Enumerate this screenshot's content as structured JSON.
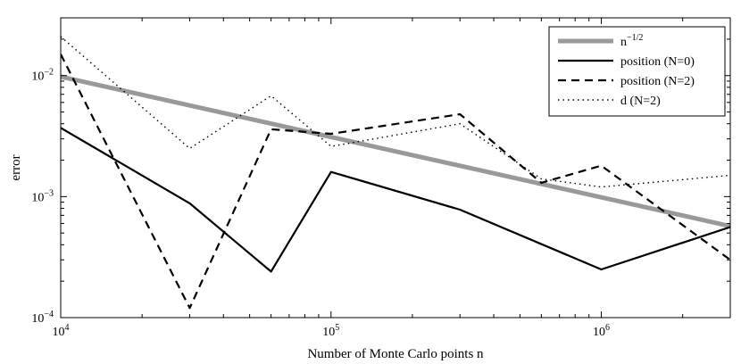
{
  "chart_data": {
    "type": "line",
    "xlabel": "Number of Monte Carlo points n",
    "ylabel": "error",
    "xscale": "log",
    "yscale": "log",
    "xlim": [
      10000,
      3000000
    ],
    "ylim": [
      0.0001,
      0.03
    ],
    "xticks": [
      {
        "value": 10000,
        "base": "10",
        "exp": "4"
      },
      {
        "value": 100000,
        "base": "10",
        "exp": "5"
      },
      {
        "value": 1000000,
        "base": "10",
        "exp": "6"
      }
    ],
    "yticks": [
      {
        "value": 0.0001,
        "base": "10",
        "exp": "−4"
      },
      {
        "value": 0.001,
        "base": "10",
        "exp": "−3"
      },
      {
        "value": 0.01,
        "base": "10",
        "exp": "−2"
      }
    ],
    "grid": false,
    "legend_position": "top-right",
    "series": [
      {
        "name_base": "n",
        "name_sup": "−1/2",
        "style": "solid-thick",
        "color": "#999999",
        "x": [
          10000,
          3000000
        ],
        "y": [
          0.0098,
          0.00057
        ]
      },
      {
        "name": "position (N=0)",
        "style": "solid",
        "color": "#000000",
        "x": [
          10000,
          30000,
          60000,
          100000,
          300000,
          1000000,
          3000000
        ],
        "y": [
          0.0037,
          0.00088,
          0.00024,
          0.0016,
          0.00078,
          0.00025,
          0.00056
        ]
      },
      {
        "name": "position (N=2)",
        "style": "dashed",
        "color": "#000000",
        "x": [
          10000,
          30000,
          60000,
          100000,
          300000,
          600000,
          1000000,
          3000000
        ],
        "y": [
          0.015,
          0.00012,
          0.0036,
          0.0033,
          0.0048,
          0.0013,
          0.0018,
          0.0003
        ]
      },
      {
        "name": "d (N=2)",
        "style": "dotted",
        "color": "#000000",
        "x": [
          10000,
          30000,
          60000,
          100000,
          300000,
          600000,
          1000000,
          3000000
        ],
        "y": [
          0.021,
          0.0025,
          0.0068,
          0.0026,
          0.004,
          0.0014,
          0.0012,
          0.0015
        ]
      }
    ]
  }
}
